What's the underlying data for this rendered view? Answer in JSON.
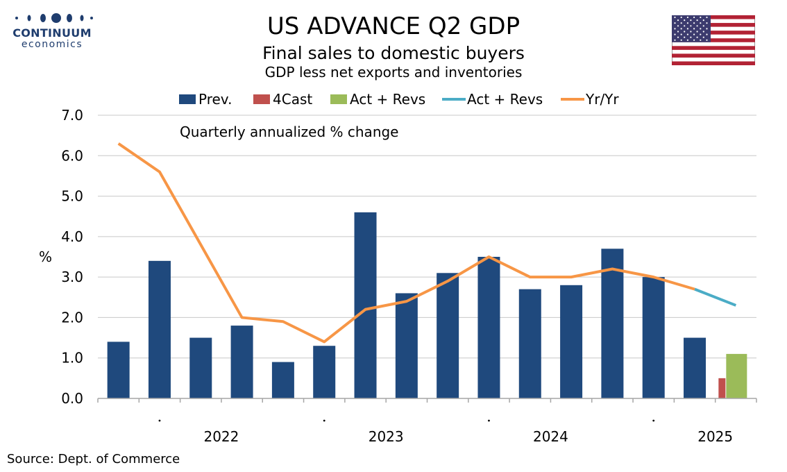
{
  "branding": {
    "name": "CONTINUUM",
    "sub": "economics"
  },
  "colors": {
    "prev": "#1f497d",
    "forecast": "#c0504d",
    "actual": "#9bbb59",
    "actual_line": "#4bacc6",
    "yoy": "#f79646",
    "flag_red": "#b22234",
    "flag_blue": "#3c3b6e"
  },
  "source": "Source: Dept. of Commerce",
  "chart_data": {
    "type": "bar",
    "title": "US ADVANCE Q2  GDP",
    "subtitle": "Final sales to domestic buyers",
    "subtitle2": "GDP less net exports and inventories",
    "ylabel": "%",
    "annotation": "Quarterly annualized % change",
    "ylim": [
      0,
      7
    ],
    "yticks": [
      "0.0",
      "1.0",
      "2.0",
      "3.0",
      "4.0",
      "5.0",
      "6.0",
      "7.0"
    ],
    "year_labels": [
      "2022",
      "2023",
      "2024",
      "2025"
    ],
    "legend": [
      "Prev.",
      "4Cast",
      "Act + Revs",
      "Act + Revs",
      "Yr/Yr"
    ],
    "quarter_count": 16,
    "series": [
      {
        "name": "Prev.",
        "kind": "bar",
        "values": [
          1.4,
          3.4,
          1.5,
          1.8,
          0.9,
          1.3,
          4.6,
          2.6,
          3.1,
          3.5,
          2.7,
          2.8,
          3.7,
          3.0,
          1.5,
          null
        ]
      },
      {
        "name": "4Cast",
        "kind": "bar",
        "values": [
          null,
          null,
          null,
          null,
          null,
          null,
          null,
          null,
          null,
          null,
          null,
          null,
          null,
          null,
          null,
          0.5
        ]
      },
      {
        "name": "Act + Revs",
        "kind": "bar",
        "values": [
          null,
          null,
          null,
          null,
          null,
          null,
          null,
          null,
          null,
          null,
          null,
          null,
          null,
          null,
          null,
          1.1
        ]
      },
      {
        "name": "Act + Revs",
        "kind": "line",
        "values": [
          null,
          null,
          null,
          null,
          null,
          null,
          null,
          null,
          null,
          null,
          null,
          null,
          null,
          null,
          2.7,
          2.3
        ]
      },
      {
        "name": "Yr/Yr",
        "kind": "line",
        "values": [
          6.3,
          5.6,
          3.8,
          2.0,
          1.9,
          1.4,
          2.2,
          2.4,
          2.9,
          3.5,
          3.0,
          3.0,
          3.2,
          3.0,
          2.7,
          null
        ]
      }
    ],
    "grid": true,
    "legend_position": "top"
  }
}
